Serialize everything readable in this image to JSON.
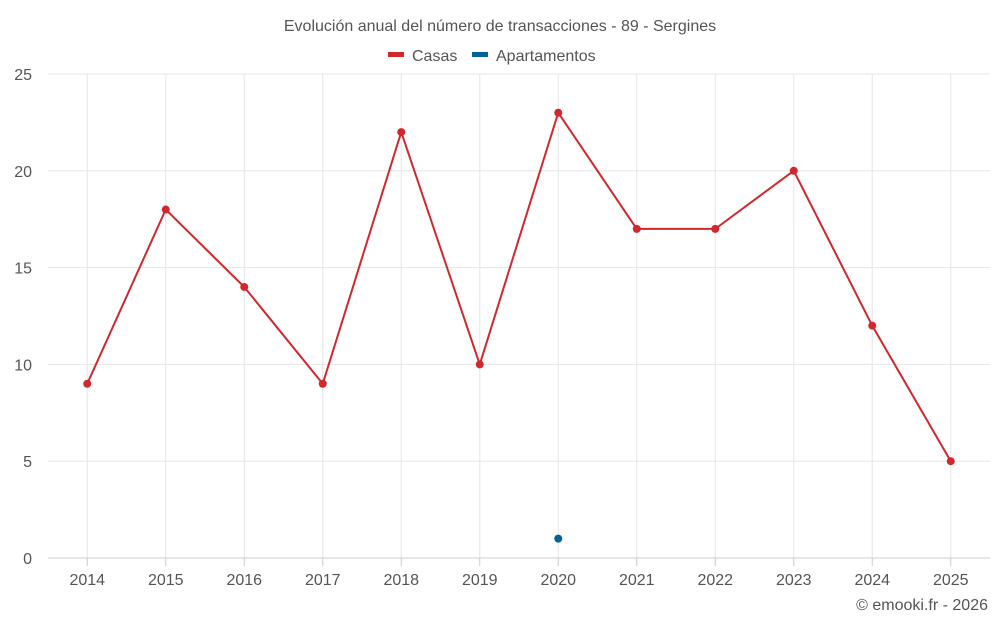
{
  "chart_data": {
    "type": "line",
    "title": "Evolución anual del número de transacciones - 89 - Sergines",
    "categories": [
      "2014",
      "2015",
      "2016",
      "2017",
      "2018",
      "2019",
      "2020",
      "2021",
      "2022",
      "2023",
      "2024",
      "2025"
    ],
    "series": [
      {
        "name": "Casas",
        "color": "#d0282c",
        "values": [
          9,
          18,
          14,
          9,
          22,
          10,
          23,
          17,
          17,
          20,
          12,
          5
        ]
      },
      {
        "name": "Apartamentos",
        "color": "#00639b",
        "values": [
          null,
          null,
          null,
          null,
          null,
          null,
          1,
          null,
          null,
          null,
          null,
          null
        ]
      }
    ],
    "ylim": [
      0,
      25
    ],
    "yticks": [
      0,
      5,
      10,
      15,
      20,
      25
    ],
    "grid": true,
    "legend": "top-center",
    "xlabel": "",
    "ylabel": ""
  },
  "credit": "© emooki.fr - 2026"
}
